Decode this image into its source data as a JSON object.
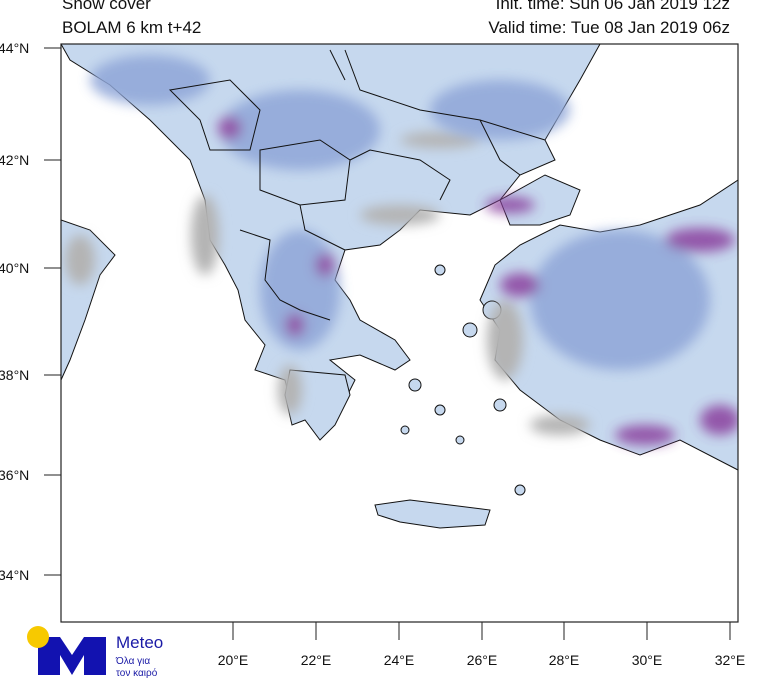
{
  "header": {
    "title": "Snow cover",
    "model": "BOLAM 6 km t+42",
    "init_time": "Init. time: Sun 06 Jan 2019 12z",
    "valid_time": "Valid time: Tue 08 Jan 2019 06z"
  },
  "map": {
    "lat_labels": [
      "44°N",
      "42°N",
      "40°N",
      "38°N",
      "36°N",
      "34°N"
    ],
    "lon_labels": [
      "20°E",
      "22°E",
      "24°E",
      "26°E",
      "28°E",
      "30°E",
      "32°E"
    ],
    "colors": {
      "sea": "#ffffff",
      "land_no_snow": "#b4b4b4",
      "snow_light": "#c6d8ee",
      "snow_mid": "#8fa6d8",
      "snow_heavy": "#8a3f9e",
      "borders": "#111111"
    }
  },
  "logo": {
    "brand": "Meteo",
    "tagline_1": "Όλα για",
    "tagline_2": "τον καιρό",
    "colors": {
      "blue": "#1212b0",
      "yellow": "#f7c900"
    }
  }
}
